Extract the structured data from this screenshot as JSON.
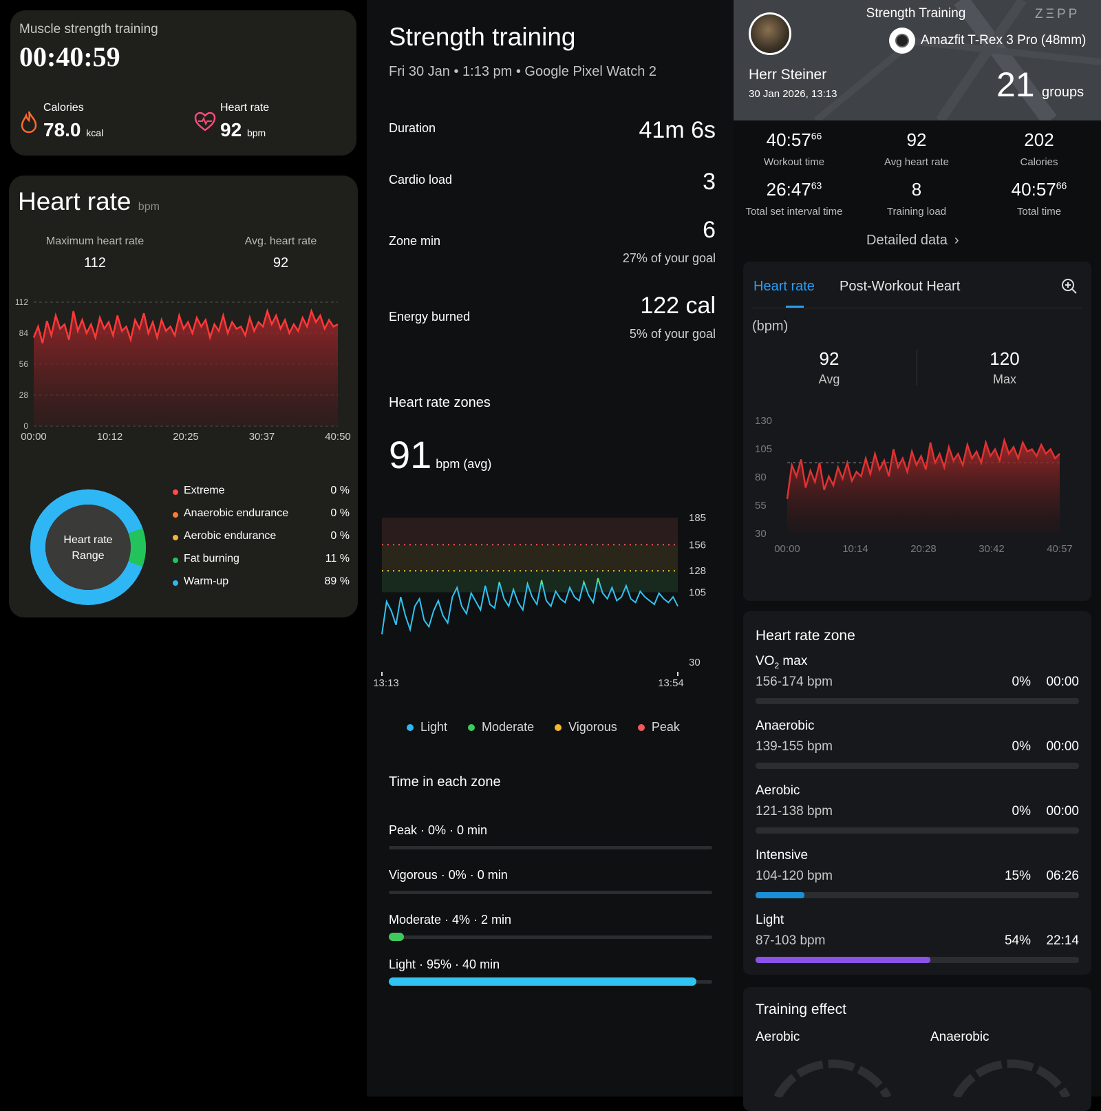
{
  "left": {
    "workout_title": "Muscle strength training",
    "duration": "00:40:59",
    "calories": {
      "label": "Calories",
      "value": "78.0",
      "unit": "kcal"
    },
    "heart": {
      "label": "Heart rate",
      "value": "92",
      "unit": "bpm"
    },
    "hr_card": {
      "title": "Heart rate",
      "unit": "bpm",
      "max_label": "Maximum heart rate",
      "max_value": "112",
      "avg_label": "Avg. heart rate",
      "avg_value": "92",
      "donut_label_1": "Heart rate",
      "donut_label_2": "Range",
      "zones": [
        {
          "name": "Extreme",
          "pct": "0 %",
          "color": "#ff4b4b"
        },
        {
          "name": "Anaerobic endurance",
          "pct": "0 %",
          "color": "#ff7a30"
        },
        {
          "name": "Aerobic endurance",
          "pct": "0 %",
          "color": "#f5b731"
        },
        {
          "name": "Fat burning",
          "pct": "11 %",
          "color": "#23c35b"
        },
        {
          "name": "Warm-up",
          "pct": "89 %",
          "color": "#2fb6f5"
        }
      ]
    }
  },
  "mid": {
    "title": "Strength training",
    "subtitle": "Fri 30 Jan • 1:13 pm • Google Pixel Watch 2",
    "stats": [
      {
        "label": "Duration",
        "value": "41m 6s",
        "sub": ""
      },
      {
        "label": "Cardio load",
        "value": "3",
        "sub": ""
      },
      {
        "label": "Zone min",
        "value": "6",
        "sub": "27% of your goal"
      },
      {
        "label": "Energy burned",
        "value": "122 cal",
        "sub": "5% of your goal"
      }
    ],
    "zones_title": "Heart rate zones",
    "avg_big": "91",
    "avg_unit": "bpm (avg)",
    "legend": [
      {
        "name": "Light",
        "color": "#2fb6f5"
      },
      {
        "name": "Moderate",
        "color": "#3ec95e"
      },
      {
        "name": "Vigorous",
        "color": "#f5b731"
      },
      {
        "name": "Peak",
        "color": "#f05a5a"
      }
    ],
    "time_title": "Time in each zone",
    "time_zones": [
      {
        "label": "Peak · 0% · 0 min",
        "fraction": 0,
        "color": "#f05a5a"
      },
      {
        "label": "Vigorous · 0% · 0 min",
        "fraction": 0,
        "color": "#f5b731"
      },
      {
        "label": "Moderate · 4% · 2 min",
        "fraction": 0.04,
        "color": "#3ec95e"
      },
      {
        "label": "Light · 95% · 40 min",
        "fraction": 0.95,
        "color": "#2fc4f2"
      }
    ]
  },
  "right": {
    "workout_title": "Strength Training",
    "brand": "ZΞPP",
    "device": "Amazfit T-Rex 3 Pro (48mm)",
    "user": "Herr Steiner",
    "date": "30 Jan 2026, 13:13",
    "groups_value": "21",
    "groups_unit": "groups",
    "stats": [
      {
        "main": "40:57",
        "sup": "66",
        "label": "Workout time"
      },
      {
        "main": "92",
        "sup": "",
        "label": "Avg heart rate"
      },
      {
        "main": "202",
        "sup": "",
        "label": "Calories"
      },
      {
        "main": "26:47",
        "sup": "63",
        "label": "Total set interval time"
      },
      {
        "main": "8",
        "sup": "",
        "label": "Training load"
      },
      {
        "main": "40:57",
        "sup": "66",
        "label": "Total time"
      }
    ],
    "detailed": "Detailed data",
    "tab_active": "Heart rate",
    "tab_other": "Post-Workout Heart",
    "unit_label": "(bpm)",
    "avg_value": "92",
    "avg_label": "Avg",
    "max_value": "120",
    "max_label": "Max",
    "zone_card_title": "Heart rate zone",
    "zones": [
      {
        "name": "VO",
        "sub": "2",
        "name_tail": " max",
        "range": "156-174 bpm",
        "pct": "0%",
        "time": "00:00",
        "fraction": 0,
        "color": "#e04848"
      },
      {
        "name": "Anaerobic",
        "sub": "",
        "name_tail": "",
        "range": "139-155 bpm",
        "pct": "0%",
        "time": "00:00",
        "fraction": 0,
        "color": "#f58a30"
      },
      {
        "name": "Aerobic",
        "sub": "",
        "name_tail": "",
        "range": "121-138 bpm",
        "pct": "0%",
        "time": "00:00",
        "fraction": 0,
        "color": "#f5b731"
      },
      {
        "name": "Intensive",
        "sub": "",
        "name_tail": "",
        "range": "104-120 bpm",
        "pct": "15%",
        "time": "06:26",
        "fraction": 0.15,
        "color": "#1b8fd6"
      },
      {
        "name": "Light",
        "sub": "",
        "name_tail": "",
        "range": "87-103 bpm",
        "pct": "54%",
        "time": "22:14",
        "fraction": 0.54,
        "color": "#8a52e8"
      }
    ],
    "effect_title": "Training effect",
    "effect_aerobic": "Aerobic",
    "effect_anaerobic": "Anaerobic"
  },
  "chart_data": [
    {
      "type": "area",
      "title": "Heart rate",
      "ylabel": "bpm",
      "x_ticks": [
        "00:00",
        "10:12",
        "20:25",
        "30:37",
        "40:50"
      ],
      "y_ticks": [
        0,
        28,
        56,
        84,
        112
      ],
      "ylim": [
        0,
        112
      ],
      "y": [
        80,
        90,
        75,
        95,
        82,
        100,
        88,
        92,
        78,
        104,
        86,
        96,
        84,
        92,
        80,
        98,
        88,
        94,
        82,
        100,
        86,
        90,
        78,
        96,
        88,
        102,
        84,
        94,
        80,
        96,
        86,
        90,
        82,
        100,
        88,
        94,
        84,
        98,
        90,
        96,
        80,
        92,
        86,
        100,
        84,
        94,
        88,
        90,
        82,
        98,
        86,
        94,
        90,
        104,
        92,
        100,
        88,
        96,
        84,
        92,
        86,
        98,
        90,
        104,
        94,
        100,
        88,
        96,
        90,
        92
      ]
    },
    {
      "type": "line",
      "title": "",
      "x_ticks": [
        "13:13",
        "13:54"
      ],
      "y_ticks": [
        30,
        105,
        128,
        156,
        185
      ],
      "ylim": [
        30,
        185
      ],
      "y": [
        60,
        95,
        85,
        70,
        100,
        80,
        65,
        90,
        98,
        75,
        68,
        85,
        96,
        80,
        72,
        100,
        110,
        90,
        82,
        104,
        95,
        86,
        112,
        92,
        88,
        116,
        98,
        90,
        108,
        94,
        86,
        114,
        100,
        92,
        118,
        96,
        90,
        106,
        98,
        94,
        110,
        100,
        96,
        116,
        102,
        94,
        120,
        104,
        98,
        110,
        96,
        100,
        112,
        98,
        94,
        106,
        100,
        96,
        92,
        104,
        98,
        94,
        100,
        90
      ]
    },
    {
      "type": "area",
      "title": "",
      "ylabel": "(bpm)",
      "x_ticks": [
        "00:00",
        "10:14",
        "20:28",
        "30:42",
        "40:57"
      ],
      "y_ticks": [
        30,
        55,
        80,
        105,
        130
      ],
      "ylim": [
        30,
        130
      ],
      "y": [
        60,
        90,
        80,
        95,
        70,
        85,
        75,
        92,
        68,
        80,
        72,
        88,
        78,
        92,
        76,
        84,
        80,
        96,
        82,
        100,
        86,
        94,
        80,
        104,
        88,
        96,
        84,
        102,
        90,
        98,
        86,
        110,
        92,
        100,
        88,
        106,
        94,
        100,
        90,
        108,
        96,
        102,
        92,
        110,
        98,
        104,
        94,
        112,
        100,
        106,
        96,
        110,
        102,
        104,
        98,
        108,
        100,
        104,
        96,
        100
      ]
    }
  ]
}
